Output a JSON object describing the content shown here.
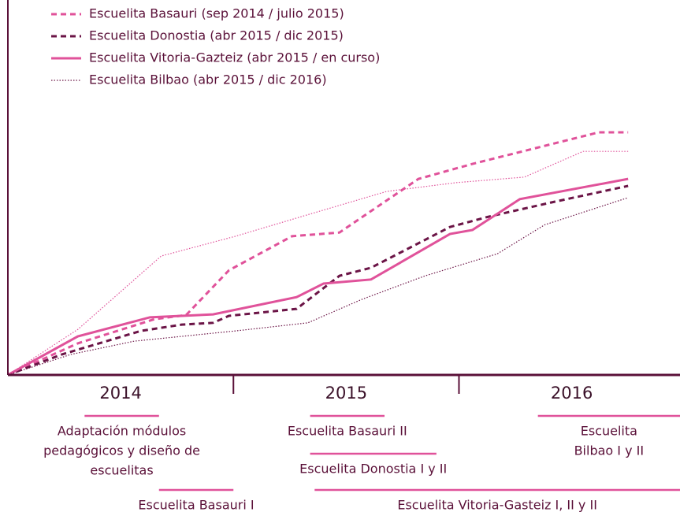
{
  "chart_data": {
    "type": "line",
    "xlim": [
      2014,
      2016.98
    ],
    "ylim": [
      0,
      100
    ],
    "xticks": [
      2015,
      2016
    ],
    "year_labels": [
      {
        "value": 2014.5,
        "label": "2014"
      },
      {
        "value": 2015.5,
        "label": "2015"
      },
      {
        "value": 2016.5,
        "label": "2016"
      }
    ],
    "series": [
      {
        "name": "Escuelita Basauri (sep 2014 / julio 2015)",
        "color": "#e0529a",
        "dash": "dashed",
        "x": [
          2014.0,
          2014.31,
          2014.65,
          2014.79,
          2014.98,
          2015.26,
          2015.47,
          2015.82,
          2016.06,
          2016.34,
          2016.62,
          2016.75
        ],
        "values": [
          0,
          8.6,
          15.2,
          16.3,
          28.5,
          37.8,
          38.8,
          53.4,
          57.5,
          61.8,
          66.1,
          66.1
        ]
      },
      {
        "name": "Escuelita Donostia (abr 2015 / dic 2015)",
        "color": "#6b1446",
        "dash": "dashed",
        "x": [
          2014.0,
          2014.24,
          2014.59,
          2014.77,
          2014.91,
          2014.98,
          2015.28,
          2015.47,
          2015.61,
          2015.96,
          2016.13,
          2016.41,
          2016.75
        ],
        "values": [
          0,
          5.6,
          12.0,
          13.7,
          14.2,
          16.1,
          18.0,
          27.0,
          29.2,
          40.3,
          43.1,
          47.0,
          51.5
        ]
      },
      {
        "name": "Escuelita Vitoria-Gazteiz (abr 2015 / en curso)",
        "color": "#e0529a",
        "dash": "solid",
        "x": [
          2014.0,
          2014.31,
          2014.63,
          2014.91,
          2015.28,
          2015.4,
          2015.61,
          2015.96,
          2016.06,
          2016.27,
          2016.75
        ],
        "values": [
          0,
          10.5,
          15.7,
          16.5,
          21.2,
          24.9,
          26.0,
          38.4,
          39.5,
          47.9,
          53.4
        ]
      },
      {
        "name": "Escuelita Bilbao (abr 2015 / dic 2016)",
        "color": "#6b1446",
        "dash": "dotted",
        "x": [
          2014.0,
          2014.28,
          2014.56,
          2015.01,
          2015.33,
          2015.57,
          2015.85,
          2016.17,
          2016.38,
          2016.75
        ],
        "values": [
          0,
          5.6,
          9.2,
          12.0,
          14.2,
          20.6,
          27.0,
          33.0,
          40.9,
          48.3
        ]
      },
      {
        "color": "#e0529a",
        "dash": "dotted",
        "x": [
          2014.0,
          2014.31,
          2014.68,
          2015.01,
          2015.36,
          2015.68,
          2015.99,
          2016.29,
          2016.55,
          2016.75
        ],
        "values": [
          0,
          12.4,
          32.4,
          37.8,
          44.2,
          50.0,
          52.4,
          53.9,
          60.9,
          60.9
        ]
      }
    ],
    "annotations": [
      {
        "label": [
          "Adaptación módulos",
          "pedagógicos y diseño de",
          "escuelitas"
        ],
        "start": 2014.34,
        "end": 2014.67
      },
      {
        "label": [
          "Escuelita Basauri I"
        ],
        "start": 2014.67,
        "end": 2015.0
      },
      {
        "label": [
          "Escuelita Basauri II"
        ],
        "start": 2015.34,
        "end": 2015.67
      },
      {
        "label": [
          "Escuelita Donostia I y II"
        ],
        "start": 2015.34,
        "end": 2015.9
      },
      {
        "label": [
          "Escuelita Vitoria-Gasteiz I, II y II"
        ],
        "start": 2015.36,
        "end": 2016.98
      },
      {
        "label": [
          "Escuelita",
          "Bilbao I y II"
        ],
        "start": 2016.35,
        "end": 2016.98
      }
    ]
  }
}
